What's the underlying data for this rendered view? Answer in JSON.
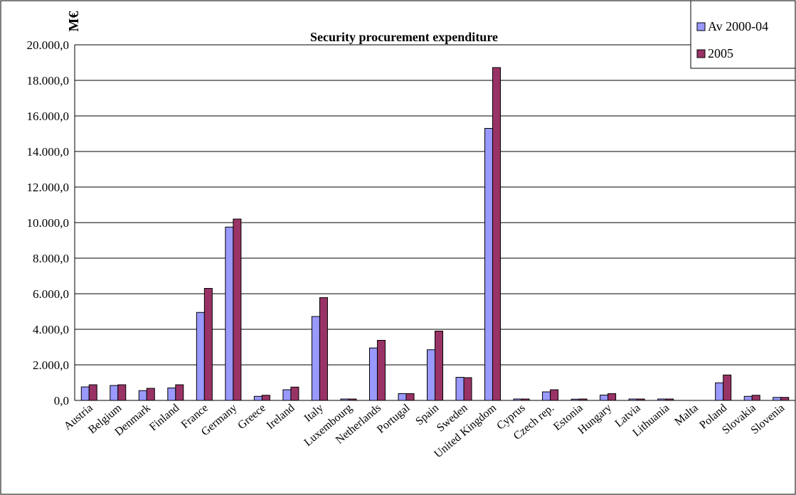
{
  "chart_data": {
    "type": "bar",
    "title": "Security procurement expenditure",
    "ylabel": "M€",
    "xlabel": "",
    "ylim": [
      0,
      20000
    ],
    "ytick_step": 2000,
    "ytick_labels": [
      "0,0",
      "2.000,0",
      "4.000,0",
      "6.000,0",
      "8.000,0",
      "10.000,0",
      "12.000,0",
      "14.000,0",
      "16.000,0",
      "18.000,0",
      "20.000,0"
    ],
    "grid": true,
    "legend_position": "top-right",
    "categories": [
      "Austria",
      "Belgium",
      "Denmark",
      "Finland",
      "France",
      "Germany",
      "Greece",
      "Ireland",
      "Italy",
      "Luxembourg",
      "Netherlands",
      "Portugal",
      "Spain",
      "Sweden",
      "United Kingdom",
      "Cyprus",
      "Czech rep.",
      "Estonia",
      "Hungary",
      "Latvia",
      "Lithuania",
      "Malta",
      "Poland",
      "Slovakia",
      "Slovenia"
    ],
    "series": [
      {
        "name": "Av 2000-04",
        "color": "#9999ff",
        "values": [
          760,
          840,
          550,
          700,
          4950,
          9750,
          230,
          600,
          4720,
          80,
          2950,
          380,
          2850,
          1300,
          15300,
          80,
          480,
          70,
          300,
          80,
          80,
          0,
          990,
          230,
          170
        ]
      },
      {
        "name": "2005",
        "color": "#993366",
        "values": [
          880,
          880,
          680,
          880,
          6300,
          10200,
          290,
          750,
          5780,
          80,
          3380,
          380,
          3900,
          1280,
          18720,
          80,
          600,
          80,
          380,
          80,
          80,
          0,
          1430,
          290,
          170
        ]
      }
    ]
  }
}
